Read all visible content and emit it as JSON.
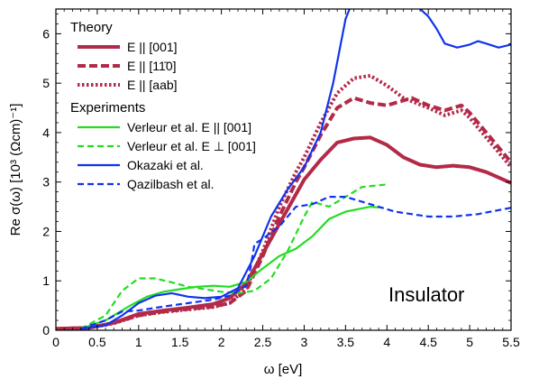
{
  "chart_data": {
    "type": "line",
    "xlabel": "ω [eV]",
    "ylabel": "Re σ(ω)  [10³ (Ωcm)⁻¹]",
    "xlim": [
      0,
      5.5
    ],
    "ylim": [
      0,
      6.5
    ],
    "x_ticks": [
      "0",
      "0.5",
      "1",
      "1.5",
      "2",
      "2.5",
      "3",
      "3.5",
      "4",
      "4.5",
      "5",
      "5.5"
    ],
    "y_ticks": [
      "0",
      "1",
      "2",
      "3",
      "4",
      "5",
      "6"
    ],
    "annotation": "Insulator",
    "legend_position": "top-left",
    "legend_groups": [
      {
        "title": "Theory",
        "series_indices": [
          0,
          1,
          2
        ]
      },
      {
        "title": "Experiments",
        "series_indices": [
          3,
          4,
          5,
          6
        ]
      }
    ],
    "series": [
      {
        "name": "E || [001]",
        "color": "#b22a48",
        "style": "solid",
        "width": 4,
        "points": [
          [
            0,
            0.03
          ],
          [
            0.4,
            0.05
          ],
          [
            0.7,
            0.15
          ],
          [
            1.0,
            0.33
          ],
          [
            1.3,
            0.4
          ],
          [
            1.6,
            0.46
          ],
          [
            1.9,
            0.53
          ],
          [
            2.1,
            0.65
          ],
          [
            2.3,
            0.95
          ],
          [
            2.5,
            1.55
          ],
          [
            2.7,
            2.15
          ],
          [
            2.9,
            2.75
          ],
          [
            3.0,
            3.05
          ],
          [
            3.2,
            3.45
          ],
          [
            3.4,
            3.8
          ],
          [
            3.6,
            3.88
          ],
          [
            3.8,
            3.9
          ],
          [
            4.0,
            3.75
          ],
          [
            4.2,
            3.5
          ],
          [
            4.4,
            3.35
          ],
          [
            4.6,
            3.3
          ],
          [
            4.8,
            3.33
          ],
          [
            5.0,
            3.3
          ],
          [
            5.2,
            3.2
          ],
          [
            5.5,
            2.98
          ]
        ]
      },
      {
        "name": "E || [11̄0]",
        "color": "#b22a48",
        "style": "dashed",
        "width": 4,
        "points": [
          [
            0,
            0.03
          ],
          [
            0.4,
            0.05
          ],
          [
            0.7,
            0.15
          ],
          [
            1.0,
            0.3
          ],
          [
            1.3,
            0.38
          ],
          [
            1.6,
            0.43
          ],
          [
            1.9,
            0.48
          ],
          [
            2.1,
            0.55
          ],
          [
            2.3,
            0.8
          ],
          [
            2.5,
            1.5
          ],
          [
            2.7,
            2.3
          ],
          [
            2.9,
            3.0
          ],
          [
            3.0,
            3.3
          ],
          [
            3.2,
            3.95
          ],
          [
            3.4,
            4.5
          ],
          [
            3.6,
            4.7
          ],
          [
            3.8,
            4.6
          ],
          [
            4.0,
            4.55
          ],
          [
            4.3,
            4.7
          ],
          [
            4.5,
            4.55
          ],
          [
            4.7,
            4.45
          ],
          [
            4.9,
            4.55
          ],
          [
            5.0,
            4.4
          ],
          [
            5.2,
            4.0
          ],
          [
            5.5,
            3.4
          ]
        ]
      },
      {
        "name": "E || [aab]",
        "color": "#b22a48",
        "style": "dotted",
        "width": 4,
        "points": [
          [
            0,
            0.03
          ],
          [
            0.4,
            0.05
          ],
          [
            0.7,
            0.14
          ],
          [
            1.0,
            0.3
          ],
          [
            1.3,
            0.37
          ],
          [
            1.6,
            0.42
          ],
          [
            1.9,
            0.47
          ],
          [
            2.1,
            0.55
          ],
          [
            2.3,
            0.85
          ],
          [
            2.5,
            1.6
          ],
          [
            2.7,
            2.5
          ],
          [
            2.9,
            3.2
          ],
          [
            3.0,
            3.5
          ],
          [
            3.2,
            4.2
          ],
          [
            3.4,
            4.8
          ],
          [
            3.6,
            5.1
          ],
          [
            3.8,
            5.15
          ],
          [
            4.0,
            4.95
          ],
          [
            4.2,
            4.7
          ],
          [
            4.5,
            4.5
          ],
          [
            4.7,
            4.35
          ],
          [
            4.9,
            4.45
          ],
          [
            5.0,
            4.3
          ],
          [
            5.2,
            3.9
          ],
          [
            5.5,
            3.3
          ]
        ]
      },
      {
        "name": "Verleur et al. E || [001]",
        "color": "#22dd22",
        "style": "solid",
        "width": 2.2,
        "points": [
          [
            0.3,
            0.03
          ],
          [
            0.6,
            0.2
          ],
          [
            0.9,
            0.5
          ],
          [
            1.1,
            0.68
          ],
          [
            1.3,
            0.78
          ],
          [
            1.5,
            0.83
          ],
          [
            1.7,
            0.88
          ],
          [
            1.9,
            0.9
          ],
          [
            2.1,
            0.88
          ],
          [
            2.3,
            0.98
          ],
          [
            2.5,
            1.25
          ],
          [
            2.7,
            1.5
          ],
          [
            2.9,
            1.65
          ],
          [
            3.1,
            1.9
          ],
          [
            3.3,
            2.25
          ],
          [
            3.5,
            2.4
          ],
          [
            3.8,
            2.5
          ],
          [
            3.95,
            2.48
          ]
        ]
      },
      {
        "name": "Verleur et al. E ⊥ [001]",
        "color": "#22dd22",
        "style": "dashed",
        "width": 2.2,
        "points": [
          [
            0.3,
            0.03
          ],
          [
            0.6,
            0.3
          ],
          [
            0.8,
            0.8
          ],
          [
            1.0,
            1.05
          ],
          [
            1.2,
            1.05
          ],
          [
            1.4,
            0.97
          ],
          [
            1.6,
            0.88
          ],
          [
            1.8,
            0.83
          ],
          [
            2.0,
            0.78
          ],
          [
            2.2,
            0.75
          ],
          [
            2.4,
            0.8
          ],
          [
            2.6,
            1.05
          ],
          [
            2.8,
            1.6
          ],
          [
            3.0,
            2.3
          ],
          [
            3.1,
            2.6
          ],
          [
            3.3,
            2.5
          ],
          [
            3.5,
            2.7
          ],
          [
            3.7,
            2.9
          ],
          [
            4.0,
            2.95
          ]
        ]
      },
      {
        "name": "Okazaki et al.",
        "color": "#1133ee",
        "style": "solid",
        "width": 2.2,
        "points": [
          [
            0.3,
            0.03
          ],
          [
            0.6,
            0.1
          ],
          [
            0.8,
            0.3
          ],
          [
            1.0,
            0.55
          ],
          [
            1.2,
            0.7
          ],
          [
            1.4,
            0.75
          ],
          [
            1.6,
            0.68
          ],
          [
            1.8,
            0.65
          ],
          [
            2.0,
            0.68
          ],
          [
            2.2,
            0.85
          ],
          [
            2.4,
            1.5
          ],
          [
            2.6,
            2.3
          ],
          [
            2.8,
            2.85
          ],
          [
            3.0,
            3.3
          ],
          [
            3.2,
            4.0
          ],
          [
            3.35,
            5.0
          ],
          [
            3.5,
            6.3
          ],
          [
            3.56,
            6.55
          ]
        ]
      },
      {
        "name": "Qazilbash et al.",
        "color": "#1133ee",
        "style": "dashed",
        "width": 2.2,
        "points": [
          [
            0.3,
            0.03
          ],
          [
            0.6,
            0.2
          ],
          [
            0.8,
            0.38
          ],
          [
            1.0,
            0.4
          ],
          [
            1.3,
            0.48
          ],
          [
            1.6,
            0.55
          ],
          [
            1.9,
            0.62
          ],
          [
            2.1,
            0.7
          ],
          [
            2.3,
            0.9
          ],
          [
            2.35,
            1.25
          ],
          [
            2.4,
            1.75
          ],
          [
            2.5,
            1.85
          ],
          [
            2.7,
            2.1
          ],
          [
            2.9,
            2.5
          ],
          [
            3.1,
            2.55
          ],
          [
            3.3,
            2.7
          ],
          [
            3.5,
            2.7
          ],
          [
            3.8,
            2.55
          ],
          [
            4.1,
            2.4
          ],
          [
            4.5,
            2.3
          ],
          [
            4.8,
            2.3
          ],
          [
            5.1,
            2.35
          ],
          [
            5.5,
            2.48
          ]
        ]
      },
      {
        "name": "",
        "color": "#1133ee",
        "style": "solid",
        "width": 2.2,
        "points": [
          [
            4.37,
            6.55
          ],
          [
            4.5,
            6.35
          ],
          [
            4.6,
            6.1
          ],
          [
            4.7,
            5.8
          ],
          [
            4.85,
            5.72
          ],
          [
            5.0,
            5.78
          ],
          [
            5.1,
            5.85
          ],
          [
            5.2,
            5.8
          ],
          [
            5.35,
            5.72
          ],
          [
            5.5,
            5.78
          ]
        ]
      }
    ]
  }
}
